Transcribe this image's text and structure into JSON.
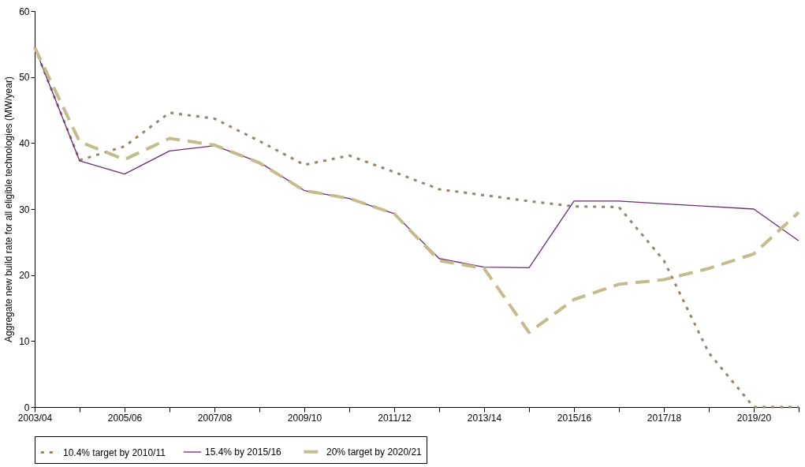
{
  "chart_data": {
    "type": "line",
    "ylabel": "Aggregate new build rate for all eligible technologies (MW/year)",
    "categories": [
      "2003/04",
      null,
      "2005/06",
      null,
      "2007/08",
      null,
      "2009/10",
      null,
      "2011/12",
      null,
      "2013/14",
      null,
      "2015/16",
      null,
      "2017/18",
      null,
      "2019/20",
      null
    ],
    "ylim": [
      0,
      60
    ],
    "yticks": [
      0,
      10,
      20,
      30,
      40,
      50,
      60
    ],
    "legend": "bottom",
    "series": [
      {
        "name": "10.4% target by 2010/11",
        "color": "#948571",
        "line_style": "dotted",
        "values": [
          54.5,
          37.4,
          39.5,
          44.6,
          43.7,
          40.3,
          36.7,
          38.1,
          35.6,
          33.0,
          32.1,
          31.2,
          30.4,
          30.3,
          22.2,
          8.2,
          0,
          0
        ]
      },
      {
        "name": "15.4% by 2015/16",
        "color": "#6b2c6e",
        "line_style": "solid",
        "values": [
          54.5,
          37.3,
          35.3,
          38.8,
          39.6,
          37.1,
          32.8,
          31.6,
          29.3,
          22.5,
          21.2,
          21.1,
          31.2,
          31.2,
          30.8,
          30.4,
          30.0,
          25.2
        ]
      },
      {
        "name": "20% target by 2020/21",
        "color": "#c4bc8c",
        "line_style": "dashed",
        "values": [
          54.5,
          40.2,
          37.5,
          40.7,
          39.7,
          37.0,
          32.8,
          31.6,
          29.3,
          22.2,
          21.0,
          11.3,
          16.3,
          18.6,
          19.3,
          21.0,
          23.2,
          29.5
        ]
      }
    ]
  }
}
